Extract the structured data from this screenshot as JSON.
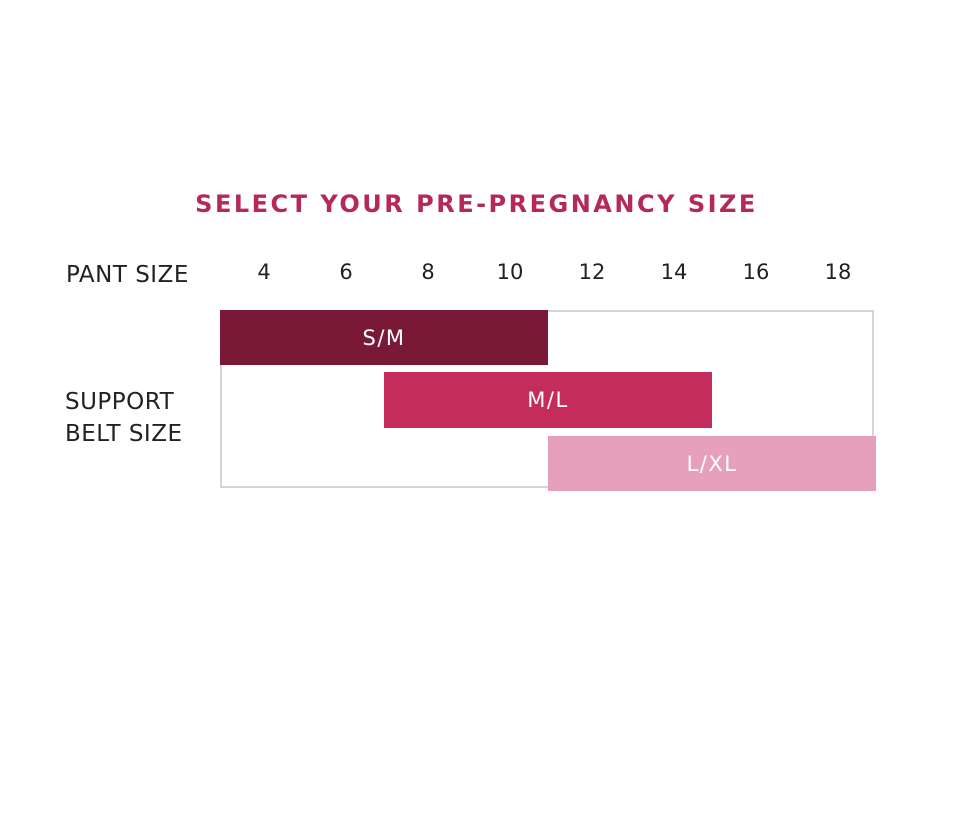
{
  "title": "SELECT YOUR PRE-PREGNANCY SIZE",
  "pant_size_label": "PANT SIZE",
  "support_belt_label_lines": [
    "SUPPORT",
    "BELT SIZE"
  ],
  "chart_data": {
    "type": "bar",
    "orientation": "horizontal-range",
    "title": "SELECT YOUR PRE-PREGNANCY SIZE",
    "xlabel": "PANT SIZE",
    "ylabel": "SUPPORT BELT SIZE",
    "x_ticks": [
      "4",
      "6",
      "8",
      "10",
      "12",
      "14",
      "16",
      "18"
    ],
    "x_range": [
      3,
      19
    ],
    "grid": false,
    "ranges": [
      {
        "name": "S/M",
        "start": 3,
        "end": 11,
        "color": "#7a1838"
      },
      {
        "name": "M/L",
        "start": 7,
        "end": 15,
        "color": "#c42d5b"
      },
      {
        "name": "L/XL",
        "start": 11,
        "end": 19,
        "color": "#e6a0bb"
      }
    ]
  }
}
